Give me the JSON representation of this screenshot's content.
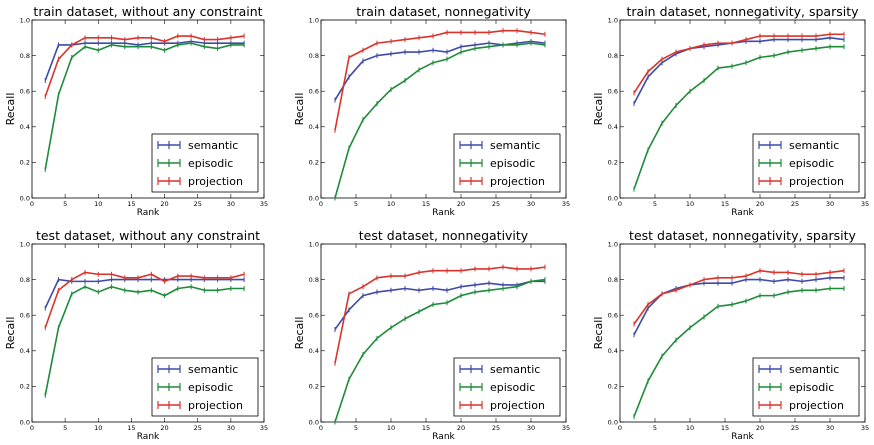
{
  "chart_data": [
    {
      "type": "line",
      "title": "train dataset, without any constraint",
      "xlabel": "Rank",
      "ylabel": "Recall",
      "xlim": [
        0,
        35
      ],
      "ylim": [
        0.0,
        1.0
      ],
      "xticks": [
        "0",
        "5",
        "10",
        "15",
        "20",
        "25",
        "30",
        "35"
      ],
      "yticks": [
        "0.0",
        "0.2",
        "0.4",
        "0.6",
        "0.8",
        "1.0"
      ],
      "legend_position": "lower-right",
      "x": [
        2,
        4,
        6,
        8,
        10,
        12,
        14,
        16,
        18,
        20,
        22,
        24,
        26,
        28,
        30,
        32
      ],
      "series": [
        {
          "name": "semantic",
          "color": "#3f4aa8",
          "values": [
            0.66,
            0.86,
            0.86,
            0.87,
            0.87,
            0.87,
            0.87,
            0.86,
            0.87,
            0.87,
            0.87,
            0.88,
            0.87,
            0.87,
            0.87,
            0.87
          ]
        },
        {
          "name": "episodic",
          "color": "#1e8b3a",
          "values": [
            0.16,
            0.58,
            0.79,
            0.85,
            0.83,
            0.86,
            0.85,
            0.85,
            0.85,
            0.83,
            0.86,
            0.87,
            0.85,
            0.84,
            0.86,
            0.86
          ]
        },
        {
          "name": "projection",
          "color": "#d8342b",
          "values": [
            0.57,
            0.78,
            0.86,
            0.9,
            0.9,
            0.9,
            0.89,
            0.9,
            0.9,
            0.88,
            0.91,
            0.91,
            0.89,
            0.89,
            0.9,
            0.91
          ]
        }
      ]
    },
    {
      "type": "line",
      "title": "train dataset, nonnegativity",
      "xlabel": "Rank",
      "ylabel": "Recall",
      "xlim": [
        0,
        35
      ],
      "ylim": [
        0.0,
        1.0
      ],
      "xticks": [
        "0",
        "5",
        "10",
        "15",
        "20",
        "25",
        "30",
        "35"
      ],
      "yticks": [
        "0.0",
        "0.2",
        "0.4",
        "0.6",
        "0.8",
        "1.0"
      ],
      "legend_position": "lower-right",
      "x": [
        2,
        4,
        6,
        8,
        10,
        12,
        14,
        16,
        18,
        20,
        22,
        24,
        26,
        28,
        30,
        32
      ],
      "series": [
        {
          "name": "semantic",
          "color": "#3f4aa8",
          "values": [
            0.55,
            0.68,
            0.77,
            0.8,
            0.81,
            0.82,
            0.82,
            0.83,
            0.82,
            0.85,
            0.86,
            0.87,
            0.86,
            0.87,
            0.88,
            0.87
          ]
        },
        {
          "name": "episodic",
          "color": "#1e8b3a",
          "values": [
            0.0,
            0.28,
            0.44,
            0.53,
            0.61,
            0.66,
            0.72,
            0.76,
            0.78,
            0.82,
            0.84,
            0.85,
            0.86,
            0.86,
            0.87,
            0.86
          ]
        },
        {
          "name": "projection",
          "color": "#d8342b",
          "values": [
            0.38,
            0.79,
            0.83,
            0.87,
            0.88,
            0.89,
            0.9,
            0.91,
            0.93,
            0.93,
            0.93,
            0.93,
            0.94,
            0.94,
            0.93,
            0.92
          ]
        }
      ]
    },
    {
      "type": "line",
      "title": "train dataset, nonnegativity, sparsity",
      "xlabel": "Rank",
      "ylabel": "Recall",
      "xlim": [
        0,
        35
      ],
      "ylim": [
        0.0,
        1.0
      ],
      "xticks": [
        "0",
        "5",
        "10",
        "15",
        "20",
        "25",
        "30",
        "35"
      ],
      "yticks": [
        "0.0",
        "0.2",
        "0.4",
        "0.6",
        "0.8",
        "1.0"
      ],
      "legend_position": "lower-right",
      "x": [
        2,
        4,
        6,
        8,
        10,
        12,
        14,
        16,
        18,
        20,
        22,
        24,
        26,
        28,
        30,
        32
      ],
      "series": [
        {
          "name": "semantic",
          "color": "#3f4aa8",
          "values": [
            0.53,
            0.68,
            0.76,
            0.81,
            0.84,
            0.85,
            0.86,
            0.87,
            0.88,
            0.88,
            0.89,
            0.89,
            0.89,
            0.89,
            0.9,
            0.89
          ]
        },
        {
          "name": "episodic",
          "color": "#1e8b3a",
          "values": [
            0.05,
            0.27,
            0.42,
            0.52,
            0.6,
            0.66,
            0.73,
            0.74,
            0.76,
            0.79,
            0.8,
            0.82,
            0.83,
            0.84,
            0.85,
            0.85
          ]
        },
        {
          "name": "projection",
          "color": "#d8342b",
          "values": [
            0.59,
            0.71,
            0.78,
            0.82,
            0.84,
            0.86,
            0.87,
            0.87,
            0.89,
            0.91,
            0.91,
            0.91,
            0.91,
            0.91,
            0.92,
            0.92
          ]
        }
      ]
    },
    {
      "type": "line",
      "title": "test dataset, without any constraint",
      "xlabel": "Rank",
      "ylabel": "Recall",
      "xlim": [
        0,
        35
      ],
      "ylim": [
        0.0,
        1.0
      ],
      "xticks": [
        "0",
        "5",
        "10",
        "15",
        "20",
        "25",
        "30",
        "35"
      ],
      "yticks": [
        "0.0",
        "0.2",
        "0.4",
        "0.6",
        "0.8",
        "1.0"
      ],
      "legend_position": "lower-right",
      "x": [
        2,
        4,
        6,
        8,
        10,
        12,
        14,
        16,
        18,
        20,
        22,
        24,
        26,
        28,
        30,
        32
      ],
      "series": [
        {
          "name": "semantic",
          "color": "#3f4aa8",
          "values": [
            0.64,
            0.8,
            0.79,
            0.79,
            0.79,
            0.8,
            0.8,
            0.8,
            0.8,
            0.8,
            0.8,
            0.8,
            0.8,
            0.8,
            0.8,
            0.8
          ]
        },
        {
          "name": "episodic",
          "color": "#1e8b3a",
          "values": [
            0.15,
            0.53,
            0.72,
            0.76,
            0.73,
            0.76,
            0.74,
            0.73,
            0.74,
            0.71,
            0.75,
            0.76,
            0.74,
            0.74,
            0.75,
            0.75
          ]
        },
        {
          "name": "projection",
          "color": "#d8342b",
          "values": [
            0.53,
            0.74,
            0.8,
            0.84,
            0.83,
            0.83,
            0.81,
            0.81,
            0.83,
            0.79,
            0.82,
            0.82,
            0.81,
            0.81,
            0.81,
            0.83
          ]
        }
      ]
    },
    {
      "type": "line",
      "title": "test dataset, nonnegativity",
      "xlabel": "Rank",
      "ylabel": "Recall",
      "xlim": [
        0,
        35
      ],
      "ylim": [
        0.0,
        1.0
      ],
      "xticks": [
        "0",
        "5",
        "10",
        "15",
        "20",
        "25",
        "30",
        "35"
      ],
      "yticks": [
        "0.0",
        "0.2",
        "0.4",
        "0.6",
        "0.8",
        "1.0"
      ],
      "legend_position": "lower-right",
      "x": [
        2,
        4,
        6,
        8,
        10,
        12,
        14,
        16,
        18,
        20,
        22,
        24,
        26,
        28,
        30,
        32
      ],
      "series": [
        {
          "name": "semantic",
          "color": "#3f4aa8",
          "values": [
            0.52,
            0.63,
            0.71,
            0.73,
            0.74,
            0.75,
            0.74,
            0.75,
            0.74,
            0.76,
            0.77,
            0.78,
            0.77,
            0.77,
            0.79,
            0.79
          ]
        },
        {
          "name": "episodic",
          "color": "#1e8b3a",
          "values": [
            0.0,
            0.24,
            0.38,
            0.47,
            0.53,
            0.58,
            0.62,
            0.66,
            0.67,
            0.71,
            0.73,
            0.74,
            0.75,
            0.76,
            0.79,
            0.8
          ]
        },
        {
          "name": "projection",
          "color": "#d8342b",
          "values": [
            0.33,
            0.72,
            0.76,
            0.81,
            0.82,
            0.82,
            0.84,
            0.85,
            0.85,
            0.85,
            0.86,
            0.86,
            0.87,
            0.86,
            0.86,
            0.87
          ]
        }
      ]
    },
    {
      "type": "line",
      "title": "test dataset, nonnegativity, sparsity",
      "xlabel": "Rank",
      "ylabel": "Recall",
      "xlim": [
        0,
        35
      ],
      "ylim": [
        0.0,
        1.0
      ],
      "xticks": [
        "0",
        "5",
        "10",
        "15",
        "20",
        "25",
        "30",
        "35"
      ],
      "yticks": [
        "0.0",
        "0.2",
        "0.4",
        "0.6",
        "0.8",
        "1.0"
      ],
      "legend_position": "lower-right",
      "x": [
        2,
        4,
        6,
        8,
        10,
        12,
        14,
        16,
        18,
        20,
        22,
        24,
        26,
        28,
        30,
        32
      ],
      "series": [
        {
          "name": "semantic",
          "color": "#3f4aa8",
          "values": [
            0.49,
            0.64,
            0.72,
            0.75,
            0.77,
            0.78,
            0.78,
            0.78,
            0.8,
            0.8,
            0.79,
            0.8,
            0.79,
            0.8,
            0.81,
            0.81
          ]
        },
        {
          "name": "episodic",
          "color": "#1e8b3a",
          "values": [
            0.03,
            0.23,
            0.37,
            0.46,
            0.53,
            0.59,
            0.65,
            0.66,
            0.68,
            0.71,
            0.71,
            0.73,
            0.74,
            0.74,
            0.75,
            0.75
          ]
        },
        {
          "name": "projection",
          "color": "#d8342b",
          "values": [
            0.55,
            0.66,
            0.72,
            0.74,
            0.77,
            0.8,
            0.81,
            0.81,
            0.82,
            0.85,
            0.84,
            0.84,
            0.83,
            0.83,
            0.84,
            0.85
          ]
        }
      ]
    }
  ]
}
